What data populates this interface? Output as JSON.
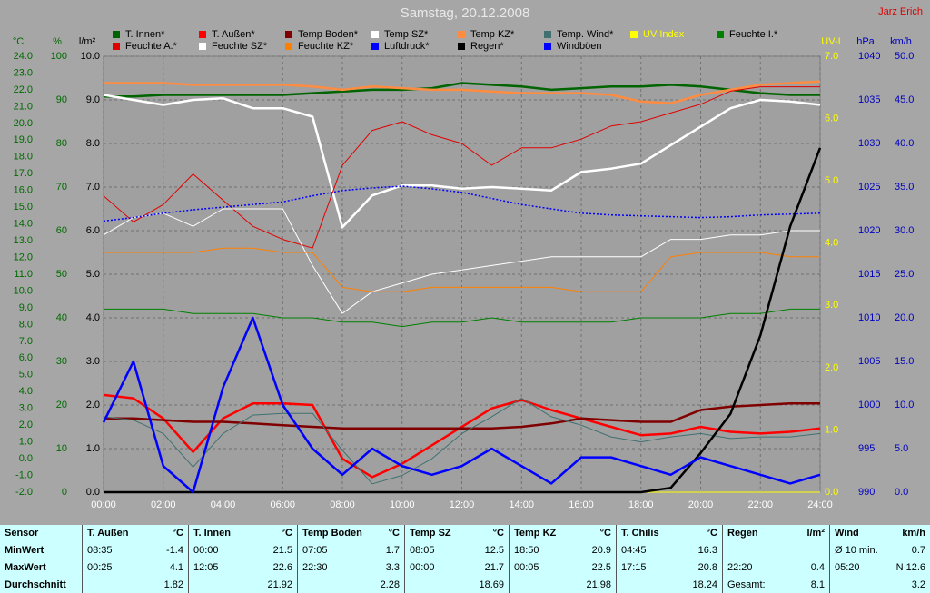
{
  "chart_data": {
    "type": "line",
    "title": "Samstag, 20.12.2008",
    "annotation": "Jarz Erich",
    "x": [
      0,
      1,
      2,
      3,
      4,
      5,
      6,
      7,
      8,
      9,
      10,
      11,
      12,
      13,
      14,
      15,
      16,
      17,
      18,
      19,
      20,
      21,
      22,
      23,
      24
    ],
    "xlim": [
      0,
      24
    ],
    "xticks": [
      {
        "value": 0,
        "label": "00:00"
      },
      {
        "value": 2,
        "label": "02:00"
      },
      {
        "value": 4,
        "label": "04:00"
      },
      {
        "value": 6,
        "label": "06:00"
      },
      {
        "value": 8,
        "label": "08:00"
      },
      {
        "value": 10,
        "label": "10:00"
      },
      {
        "value": 12,
        "label": "12:00"
      },
      {
        "value": 14,
        "label": "14:00"
      },
      {
        "value": 16,
        "label": "16:00"
      },
      {
        "value": 18,
        "label": "18:00"
      },
      {
        "value": 20,
        "label": "20:00"
      },
      {
        "value": 22,
        "label": "22:00"
      },
      {
        "value": 24,
        "label": "24:00"
      }
    ],
    "grid": true,
    "axes": [
      {
        "label": "°C",
        "color": "#006a00",
        "lim": [
          -2,
          24
        ],
        "ticks": [
          {
            "value": -2,
            "label": "-2.0"
          },
          {
            "value": -1,
            "label": "-1.0"
          },
          {
            "value": 0,
            "label": "0.0"
          },
          {
            "value": 1,
            "label": "1.0"
          },
          {
            "value": 2,
            "label": "2.0"
          },
          {
            "value": 3,
            "label": "3.0"
          },
          {
            "value": 4,
            "label": "4.0"
          },
          {
            "value": 5,
            "label": "5.0"
          },
          {
            "value": 6,
            "label": "6.0"
          },
          {
            "value": 7,
            "label": "7.0"
          },
          {
            "value": 8,
            "label": "8.0"
          },
          {
            "value": 9,
            "label": "9.0"
          },
          {
            "value": 10,
            "label": "10.0"
          },
          {
            "value": 11,
            "label": "11.0"
          },
          {
            "value": 12,
            "label": "12.0"
          },
          {
            "value": 13,
            "label": "13.0"
          },
          {
            "value": 14,
            "label": "14.0"
          },
          {
            "value": 15,
            "label": "15.0"
          },
          {
            "value": 16,
            "label": "16.0"
          },
          {
            "value": 17,
            "label": "17.0"
          },
          {
            "value": 18,
            "label": "18.0"
          },
          {
            "value": 19,
            "label": "19.0"
          },
          {
            "value": 20,
            "label": "20.0"
          },
          {
            "value": 21,
            "label": "21.0"
          },
          {
            "value": 22,
            "label": "22.0"
          },
          {
            "value": 23,
            "label": "23.0"
          },
          {
            "value": 24,
            "label": "24.0"
          }
        ]
      },
      {
        "label": "%",
        "color": "#006a00",
        "lim": [
          0,
          100
        ],
        "ticks": [
          0,
          10,
          20,
          30,
          40,
          50,
          60,
          70,
          80,
          90,
          100
        ]
      },
      {
        "label": "l/m²",
        "color": "#000000",
        "lim": [
          0,
          10
        ],
        "ticks": [
          {
            "value": 0,
            "label": "0.0"
          },
          {
            "value": 1,
            "label": "1.0"
          },
          {
            "value": 2,
            "label": "2.0"
          },
          {
            "value": 3,
            "label": "3.0"
          },
          {
            "value": 4,
            "label": "4.0"
          },
          {
            "value": 5,
            "label": "5.0"
          },
          {
            "value": 6,
            "label": "6.0"
          },
          {
            "value": 7,
            "label": "7.0"
          },
          {
            "value": 8,
            "label": "8.0"
          },
          {
            "value": 9,
            "label": "9.0"
          },
          {
            "value": 10,
            "label": "10.0"
          }
        ]
      },
      {
        "label": "UV-I",
        "color": "#ffff00",
        "lim": [
          0,
          7
        ],
        "ticks": [
          {
            "value": 0,
            "label": "0.0"
          },
          {
            "value": 1,
            "label": "1.0"
          },
          {
            "value": 2,
            "label": "2.0"
          },
          {
            "value": 3,
            "label": "3.0"
          },
          {
            "value": 4,
            "label": "4.0"
          },
          {
            "value": 5,
            "label": "5.0"
          },
          {
            "value": 6,
            "label": "6.0"
          },
          {
            "value": 7,
            "label": "7.0"
          }
        ]
      },
      {
        "label": "hPa",
        "color": "#0000c0",
        "lim": [
          990,
          1040
        ],
        "ticks": [
          990,
          995,
          1000,
          1005,
          1010,
          1015,
          1020,
          1025,
          1030,
          1035,
          1040
        ]
      },
      {
        "label": "km/h",
        "color": "#0000c0",
        "lim": [
          0,
          50
        ],
        "ticks": [
          {
            "value": 0,
            "label": "0.0"
          },
          {
            "value": 5,
            "label": "5.0"
          },
          {
            "value": 10,
            "label": "10.0"
          },
          {
            "value": 15,
            "label": "15.0"
          },
          {
            "value": 20,
            "label": "20.0"
          },
          {
            "value": 25,
            "label": "25.0"
          },
          {
            "value": 30,
            "label": "30.0"
          },
          {
            "value": 35,
            "label": "35.0"
          },
          {
            "value": 40,
            "label": "40.0"
          },
          {
            "value": 45,
            "label": "45.0"
          },
          {
            "value": 50,
            "label": "50.0"
          }
        ]
      }
    ],
    "series": [
      {
        "name": "T. Innen*",
        "color": "#006400",
        "axis": 0,
        "style": "thick",
        "values": [
          21.6,
          21.6,
          21.7,
          21.7,
          21.7,
          21.7,
          21.7,
          21.8,
          21.9,
          22.0,
          22.0,
          22.1,
          22.4,
          22.3,
          22.2,
          22.0,
          22.1,
          22.2,
          22.2,
          22.3,
          22.2,
          22.0,
          21.8,
          21.7,
          21.7
        ]
      },
      {
        "name": "T. Außen*",
        "color": "#ff0000",
        "axis": 0,
        "style": "thick",
        "values": [
          3.8,
          3.6,
          2.4,
          0.4,
          2.4,
          3.3,
          3.3,
          3.2,
          0.0,
          -1.1,
          -0.3,
          0.8,
          1.9,
          3.0,
          3.5,
          2.9,
          2.4,
          1.9,
          1.4,
          1.5,
          1.9,
          1.6,
          1.5,
          1.6,
          1.8
        ]
      },
      {
        "name": "Temp Boden*",
        "color": "#800000",
        "axis": 0,
        "style": "thick",
        "values": [
          2.4,
          2.4,
          2.3,
          2.2,
          2.2,
          2.1,
          2.0,
          1.9,
          1.8,
          1.8,
          1.8,
          1.8,
          1.8,
          1.8,
          1.9,
          2.1,
          2.4,
          2.3,
          2.2,
          2.2,
          2.9,
          3.1,
          3.2,
          3.3,
          3.3
        ]
      },
      {
        "name": "Temp SZ*",
        "color": "#ffffff",
        "axis": 0,
        "style": "thick",
        "values": [
          21.7,
          21.4,
          21.1,
          21.4,
          21.5,
          20.9,
          20.9,
          20.4,
          13.8,
          15.7,
          16.3,
          16.3,
          16.1,
          16.2,
          16.1,
          16.0,
          17.1,
          17.3,
          17.6,
          18.7,
          19.8,
          20.9,
          21.4,
          21.3,
          21.1
        ]
      },
      {
        "name": "Temp KZ*",
        "color": "#ff8c40",
        "axis": 0,
        "style": "thick",
        "values": [
          22.4,
          22.4,
          22.4,
          22.3,
          22.3,
          22.3,
          22.3,
          22.2,
          22.0,
          22.2,
          22.1,
          22.0,
          22.0,
          21.9,
          21.8,
          21.8,
          21.8,
          21.7,
          21.3,
          21.2,
          21.7,
          22.0,
          22.3,
          22.4,
          22.5
        ]
      },
      {
        "name": "Temp. Wind*",
        "color": "#407070",
        "axis": 0,
        "style": "thin",
        "values": [
          2.5,
          2.3,
          1.5,
          -0.5,
          1.5,
          2.6,
          2.7,
          2.7,
          0.5,
          -1.5,
          -1.0,
          0.0,
          1.5,
          2.5,
          3.6,
          2.5,
          2.0,
          1.3,
          1.0,
          1.3,
          1.5,
          1.2,
          1.3,
          1.3,
          1.5
        ]
      },
      {
        "name": "UV Index",
        "color": "#ffff00",
        "axis": 3,
        "style": "thin",
        "values": [
          0,
          0,
          0,
          0,
          0,
          0,
          0,
          0,
          0,
          0,
          0,
          0,
          0,
          0,
          0,
          0,
          0,
          0,
          0,
          0,
          0,
          0,
          0,
          0,
          0
        ]
      },
      {
        "name": "Feuchte I.*",
        "color": "#008000",
        "axis": 1,
        "style": "thin",
        "values": [
          42,
          42,
          42,
          41,
          41,
          41,
          40,
          40,
          39,
          39,
          38,
          39,
          39,
          40,
          39,
          39,
          39,
          39,
          40,
          40,
          40,
          41,
          41,
          42,
          42
        ]
      },
      {
        "name": "Feuchte A.*",
        "color": "#e00000",
        "axis": 1,
        "style": "thin",
        "values": [
          68,
          62,
          66,
          73,
          67,
          61,
          58,
          56,
          75,
          83,
          85,
          82,
          80,
          75,
          79,
          79,
          81,
          84,
          85,
          87,
          89,
          92,
          93,
          93,
          93
        ]
      },
      {
        "name": "Feuchte SZ*",
        "color": "#ffffff",
        "axis": 1,
        "style": "thin",
        "values": [
          59,
          63,
          64,
          61,
          65,
          65,
          65,
          52,
          41,
          46,
          48,
          50,
          51,
          52,
          53,
          54,
          54,
          54,
          54,
          58,
          58,
          59,
          59,
          60,
          60
        ]
      },
      {
        "name": "Feuchte KZ*",
        "color": "#ff8000",
        "axis": 1,
        "style": "thin",
        "values": [
          55,
          55,
          55,
          55,
          56,
          56,
          55,
          55,
          47,
          46,
          46,
          47,
          47,
          47,
          47,
          47,
          46,
          46,
          46,
          54,
          55,
          55,
          55,
          54,
          54
        ]
      },
      {
        "name": "Luftdruck*",
        "color": "#0000ff",
        "axis": 4,
        "style": "dotted",
        "values": [
          1021.1,
          1021.5,
          1022.0,
          1022.4,
          1022.7,
          1023.0,
          1023.3,
          1024.0,
          1024.6,
          1024.9,
          1025.1,
          1024.8,
          1024.4,
          1023.7,
          1023.0,
          1022.5,
          1022.0,
          1021.8,
          1021.7,
          1021.6,
          1021.5,
          1021.6,
          1021.8,
          1021.9,
          1022.0
        ]
      },
      {
        "name": "Regen*",
        "color": "#000000",
        "axis": 2,
        "style": "thick",
        "values": [
          0,
          0,
          0,
          0,
          0,
          0,
          0,
          0,
          0,
          0,
          0,
          0,
          0,
          0,
          0,
          0,
          0,
          0,
          0,
          0.1,
          0.9,
          1.8,
          3.6,
          6.1,
          7.9
        ]
      },
      {
        "name": "Windböen",
        "color": "#0000ff",
        "axis": 5,
        "style": "thick",
        "values": [
          8,
          15,
          3,
          0,
          12,
          20,
          10,
          5,
          2,
          5,
          3,
          2,
          3,
          5,
          3,
          1,
          4,
          4,
          3,
          2,
          4,
          3,
          2,
          1,
          2
        ]
      }
    ]
  },
  "table": {
    "columns": [
      {
        "name": "Sensor"
      },
      {
        "name": "T. Außen",
        "unit": "°C"
      },
      {
        "name": "T. Innen",
        "unit": "°C"
      },
      {
        "name": "Temp Boden",
        "unit": "°C"
      },
      {
        "name": "Temp SZ",
        "unit": "°C"
      },
      {
        "name": "Temp KZ",
        "unit": "°C"
      },
      {
        "name": "T. Chilis",
        "unit": "°C"
      },
      {
        "name": "Regen",
        "unit": "l/m²"
      },
      {
        "name": "Wind",
        "unit": "km/h"
      }
    ],
    "rows": [
      {
        "label": "MinWert",
        "cells": [
          {
            "time": "08:35",
            "value": "-1.4"
          },
          {
            "time": "00:00",
            "value": "21.5"
          },
          {
            "time": "07:05",
            "value": "1.7"
          },
          {
            "time": "08:05",
            "value": "12.5"
          },
          {
            "time": "18:50",
            "value": "20.9"
          },
          {
            "time": "04:45",
            "value": "16.3"
          },
          {
            "time": "",
            "value": ""
          },
          {
            "time": "Ø 10 min.",
            "value": "0.7"
          }
        ]
      },
      {
        "label": "MaxWert",
        "cells": [
          {
            "time": "00:25",
            "value": "4.1"
          },
          {
            "time": "12:05",
            "value": "22.6"
          },
          {
            "time": "22:30",
            "value": "3.3"
          },
          {
            "time": "00:00",
            "value": "21.7"
          },
          {
            "time": "00:05",
            "value": "22.5"
          },
          {
            "time": "17:15",
            "value": "20.8"
          },
          {
            "time": "22:20",
            "value": "0.4"
          },
          {
            "time": "05:20",
            "value": "N 12.6"
          }
        ]
      },
      {
        "label": "Durchschnitt",
        "cells": [
          {
            "value": "1.82"
          },
          {
            "value": "21.92"
          },
          {
            "value": "2.28"
          },
          {
            "value": "18.69"
          },
          {
            "value": "21.98"
          },
          {
            "value": "18.24"
          },
          {
            "time": "Gesamt:",
            "value": "8.1"
          },
          {
            "value": "3.2"
          }
        ]
      }
    ]
  }
}
